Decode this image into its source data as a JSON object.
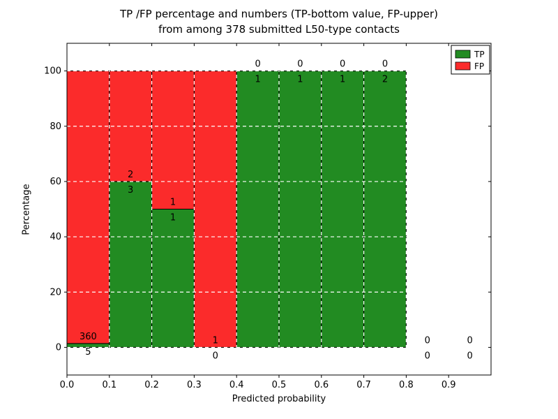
{
  "chart_data": {
    "type": "bar",
    "stacked": true,
    "title_line1": "TP /FP percentage and numbers (TP-bottom value, FP-upper)",
    "title_line2": "from among 378 submitted L50-type contacts",
    "total_contacts": 378,
    "xlabel": "Predicted probability",
    "ylabel": "Percentage",
    "xlim": [
      0.0,
      1.0
    ],
    "ylim": [
      -10,
      110
    ],
    "xticks": [
      "0.0",
      "0.1",
      "0.2",
      "0.3",
      "0.4",
      "0.5",
      "0.6",
      "0.7",
      "0.8",
      "0.9"
    ],
    "yticks": [
      0,
      20,
      40,
      60,
      80,
      100
    ],
    "grid": true,
    "colors": {
      "tp": "#228b22",
      "fp": "#fb2b2b",
      "grid": "#ffffff"
    },
    "legend": [
      {
        "label": "TP",
        "key": "tp"
      },
      {
        "label": "FP",
        "key": "fp"
      }
    ],
    "bins": [
      {
        "range": [
          0.0,
          0.1
        ],
        "tp": 5,
        "fp": 360,
        "tp_pct": 1.4,
        "fp_pct": 98.6
      },
      {
        "range": [
          0.1,
          0.2
        ],
        "tp": 3,
        "fp": 2,
        "tp_pct": 60,
        "fp_pct": 40
      },
      {
        "range": [
          0.2,
          0.3
        ],
        "tp": 1,
        "fp": 1,
        "tp_pct": 50,
        "fp_pct": 50
      },
      {
        "range": [
          0.3,
          0.4
        ],
        "tp": 0,
        "fp": 1,
        "tp_pct": 0,
        "fp_pct": 100
      },
      {
        "range": [
          0.4,
          0.5
        ],
        "tp": 1,
        "fp": 0,
        "tp_pct": 100,
        "fp_pct": 0
      },
      {
        "range": [
          0.5,
          0.6
        ],
        "tp": 1,
        "fp": 0,
        "tp_pct": 100,
        "fp_pct": 0
      },
      {
        "range": [
          0.6,
          0.7
        ],
        "tp": 1,
        "fp": 0,
        "tp_pct": 100,
        "fp_pct": 0
      },
      {
        "range": [
          0.7,
          0.8
        ],
        "tp": 2,
        "fp": 0,
        "tp_pct": 100,
        "fp_pct": 0
      },
      {
        "range": [
          0.8,
          0.9
        ],
        "tp": 0,
        "fp": 0,
        "tp_pct": 0,
        "fp_pct": 0
      },
      {
        "range": [
          0.9,
          1.0
        ],
        "tp": 0,
        "fp": 0,
        "tp_pct": 0,
        "fp_pct": 0
      }
    ]
  }
}
